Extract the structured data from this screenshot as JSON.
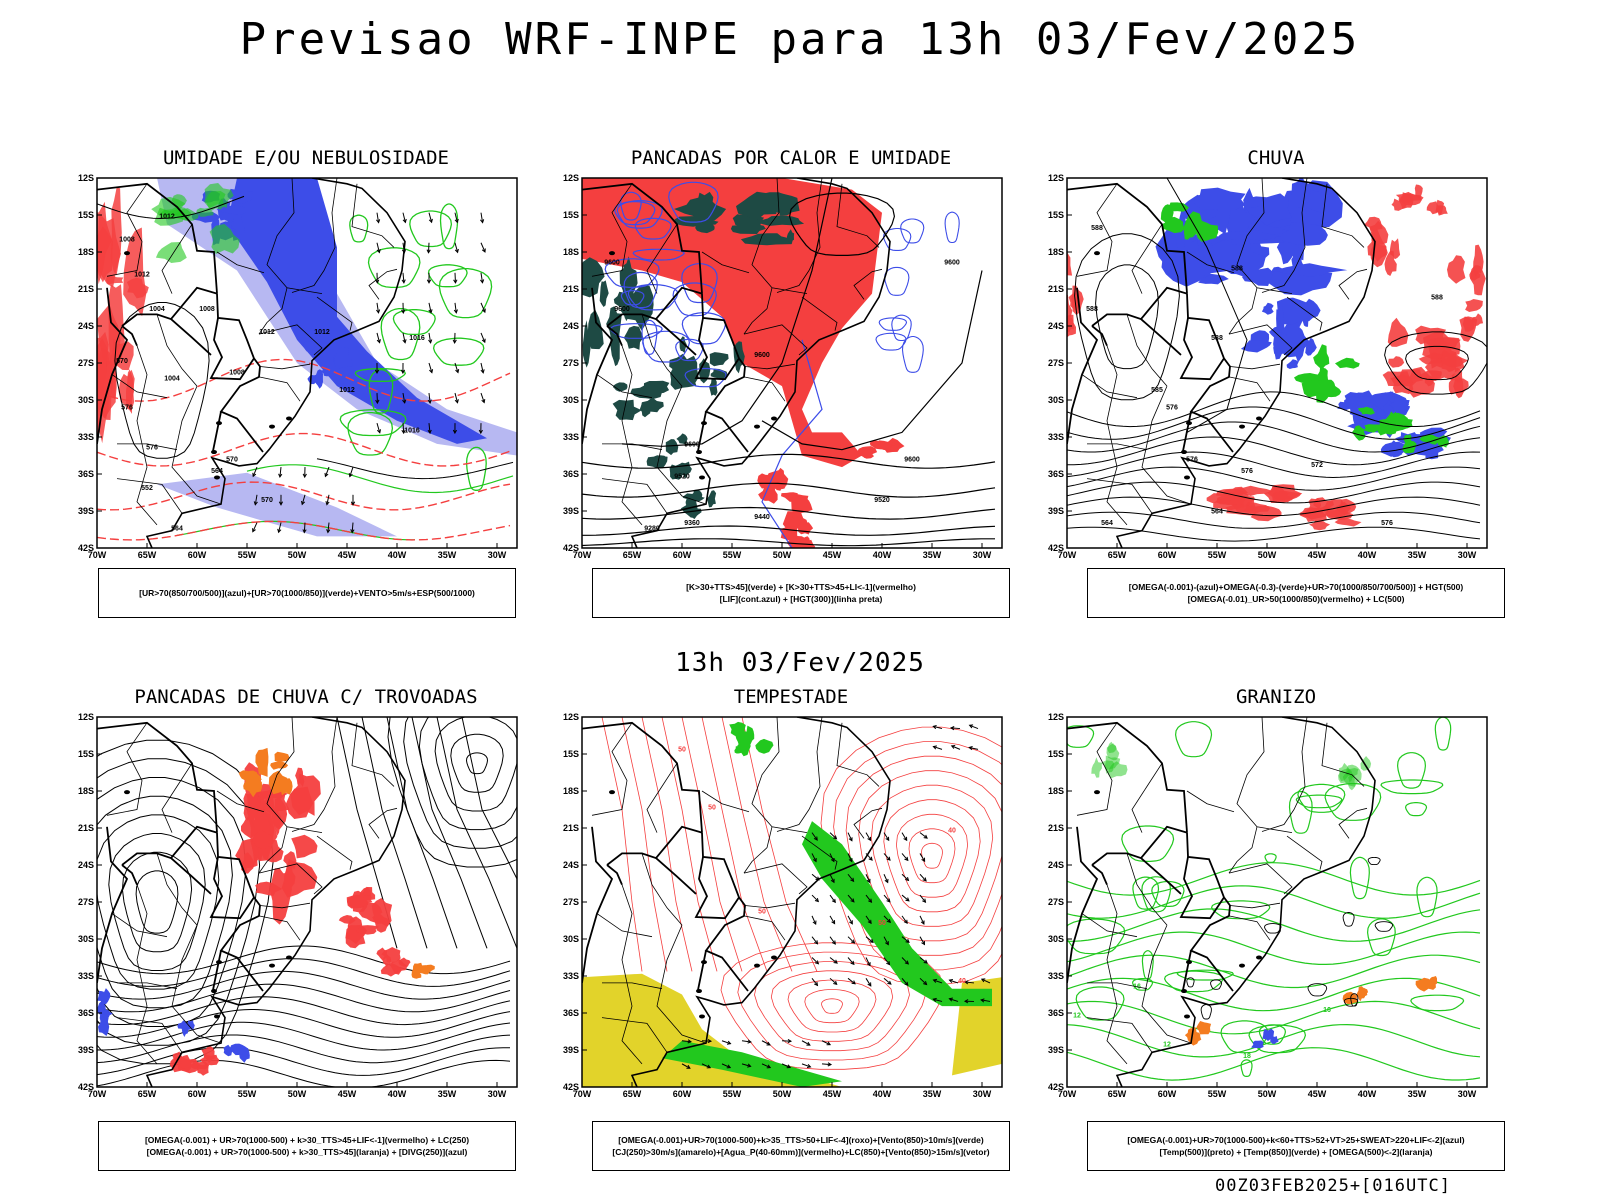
{
  "title": "Previsao WRF-INPE  para 13h 03/Fev/2025",
  "subtitle": "13h 03/Fev/2025",
  "footer": "00Z03FEB2025+[016UTC]",
  "colors": {
    "blue": "#3d4de8",
    "lightblue": "#b7b8f2",
    "green": "#22c81e",
    "red": "#f43f3f",
    "darkgreen": "#1e4a44",
    "orange": "#f47c20",
    "yellow": "#e2d32a",
    "black": "#000000"
  },
  "chart_data": [
    {
      "type": "map",
      "title": "UMIDADE E/OU NEBULOSIDADE",
      "caption": [
        "[UR>70(850/700/500)](azul)+[UR>70(1000/850)](verde)+VENTO>5m/s+ESP(500/1000)"
      ],
      "xticks": [
        "70W",
        "65W",
        "60W",
        "55W",
        "50W",
        "45W",
        "40W",
        "35W",
        "30W"
      ],
      "yticks": [
        "12S",
        "15S",
        "18S",
        "21S",
        "24S",
        "27S",
        "30S",
        "33S",
        "36S",
        "39S",
        "42S"
      ],
      "contour_labels": [
        "1008",
        "1012",
        "1012",
        "1004",
        "1008",
        "1012",
        "1012",
        "1004",
        "1008",
        "1016",
        "1012",
        "1016",
        "570",
        "576",
        "576",
        "570",
        "564",
        "570",
        "552",
        "564"
      ]
    },
    {
      "type": "map",
      "title": "PANCADAS POR CALOR E UMIDADE",
      "caption": [
        "[K>30+TTS>45](verde) + [K>30+TTS>45+LI<-1](vermelho)",
        "[LIF](cont.azul) + [HGT(300)](linha preta)"
      ],
      "xticks": [
        "70W",
        "65W",
        "60W",
        "55W",
        "50W",
        "45W",
        "40W",
        "35W",
        "30W"
      ],
      "yticks": [
        "12S",
        "15S",
        "18S",
        "21S",
        "24S",
        "27S",
        "30S",
        "33S",
        "36S",
        "39S",
        "42S"
      ],
      "contour_labels": [
        "9600",
        "9600",
        "9600",
        "9600",
        "9600",
        "9520",
        "9520",
        "9440",
        "9360",
        "9280",
        "9600"
      ]
    },
    {
      "type": "map",
      "title": "CHUVA",
      "caption": [
        "[OMEGA(-0.001)-(azul)+OMEGA(-0.3)-(verde)+UR>70(1000/850/700/500)] + HGT(500)",
        "[OMEGA(-0.01)_UR>50(1000/850)(vermelho) + LC(500)"
      ],
      "xticks": [
        "70W",
        "65W",
        "60W",
        "55W",
        "50W",
        "45W",
        "40W",
        "35W",
        "30W"
      ],
      "yticks": [
        "12S",
        "15S",
        "18S",
        "21S",
        "24S",
        "27S",
        "30S",
        "33S",
        "36S",
        "39S",
        "42S"
      ],
      "contour_labels": [
        "588",
        "588",
        "588",
        "588",
        "585",
        "588",
        "576",
        "576",
        "576",
        "572",
        "564",
        "564",
        "576"
      ]
    },
    {
      "type": "map",
      "title": "PANCADAS DE CHUVA C/ TROVOADAS",
      "caption": [
        "[OMEGA(-0.001) + UR>70(1000-500) + k>30_TTS>45+LIF<-1](vermelho) + LC(250)",
        "[OMEGA(-0.001) + UR>70(1000-500) + k>30_TTS>45](laranja) + [DIVG(250)](azul)"
      ],
      "xticks": [
        "70W",
        "65W",
        "60W",
        "55W",
        "50W",
        "45W",
        "40W",
        "35W",
        "30W"
      ],
      "yticks": [
        "12S",
        "15S",
        "18S",
        "21S",
        "24S",
        "27S",
        "30S",
        "33S",
        "36S",
        "39S",
        "42S"
      ],
      "contour_labels": []
    },
    {
      "type": "map",
      "title": "TEMPESTADE",
      "caption": [
        "[OMEGA(-0.001)+UR>70(1000-500)+k>35_TTS>50+LIF<-4](roxo)+[Vento(850)>10m/s](verde)",
        "[CJ(250)>30m/s](amarelo)+[Agua_P(40-60mm)](vermelho)+LC(850)+[Vento(850)>15m/s](vetor)"
      ],
      "xticks": [
        "70W",
        "65W",
        "60W",
        "55W",
        "50W",
        "45W",
        "40W",
        "35W",
        "30W"
      ],
      "yticks": [
        "12S",
        "15S",
        "18S",
        "21S",
        "24S",
        "27S",
        "30S",
        "33S",
        "36S",
        "39S",
        "42S"
      ],
      "contour_labels": [
        "50",
        "50",
        "50",
        "40",
        "40",
        "50"
      ]
    },
    {
      "type": "map",
      "title": "GRANIZO",
      "caption": [
        "[OMEGA(-0.001)+UR>70(1000-500)+k<60+TTS>52+VT>25+SWEAT>220+LIF<-2](azul)",
        "[Temp(500)](preto) + [Temp(850)](verde) + [OMEGA(500)<-2](laranja)"
      ],
      "xticks": [
        "70W",
        "65W",
        "60W",
        "55W",
        "50W",
        "45W",
        "40W",
        "35W",
        "30W"
      ],
      "yticks": [
        "12S",
        "15S",
        "18S",
        "21S",
        "24S",
        "27S",
        "30S",
        "33S",
        "36S",
        "39S",
        "42S"
      ],
      "contour_labels": [
        "12",
        "16",
        "12",
        "16",
        "18"
      ]
    }
  ]
}
